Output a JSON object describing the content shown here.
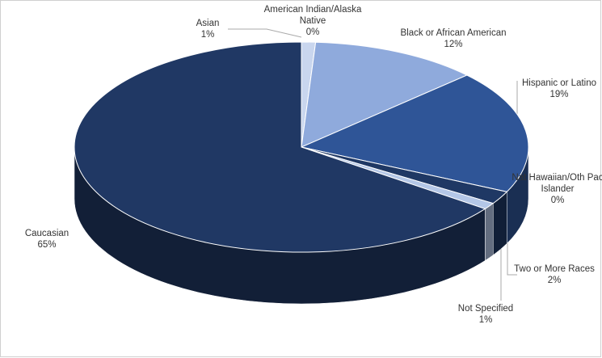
{
  "chart_data": {
    "type": "pie3d",
    "categories": [
      "Asian",
      "American Indian/Alaska Native",
      "Black or African American",
      "Hispanic or Latino",
      "Nat Hawaiian/Oth Pac Islander",
      "Two or More Races",
      "Not Specified",
      "Caucasian"
    ],
    "values": [
      1,
      0,
      12,
      19,
      0,
      2,
      1,
      65
    ],
    "value_labels": [
      "1%",
      "0%",
      "12%",
      "19%",
      "0%",
      "2%",
      "1%",
      "65%"
    ],
    "colors": [
      "#c9d6ee",
      "#1f3864",
      "#8faadc",
      "#2f5597",
      "#00b0f0",
      "#1f3864",
      "#b4c7e7",
      "#203864"
    ]
  }
}
